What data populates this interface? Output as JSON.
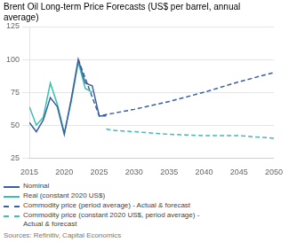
{
  "chart_data": {
    "type": "line",
    "title": "Brent Oil Long-term Price Forecasts (US$ per barrel, annual\naverage)",
    "source": "Sources: Refinitiv, Capital Economics",
    "xlim": [
      2015,
      2050
    ],
    "xticks": [
      2015,
      2020,
      2025,
      2030,
      2035,
      2040,
      2045,
      2050
    ],
    "ylim": [
      25,
      125
    ],
    "yticks": [
      25,
      50,
      75,
      100,
      125
    ],
    "grid": "y",
    "legend": "bottom",
    "series": [
      {
        "name": "Nominal",
        "color": "#3a5fa0",
        "line_style": "solid",
        "x": [
          2015,
          2016,
          2017,
          2018,
          2019,
          2020,
          2021,
          2022,
          2023,
          2024,
          2025,
          2026
        ],
        "values": [
          52,
          45,
          54,
          71,
          64,
          43,
          70,
          100,
          82,
          80,
          57,
          57
        ]
      },
      {
        "name": "Real (constant 2020 US$)",
        "color": "#3abfb0",
        "line_style": "solid",
        "x": [
          2015,
          2016,
          2017,
          2018,
          2019,
          2020,
          2021,
          2022,
          2023,
          2024
        ],
        "values": [
          64,
          50,
          56,
          82,
          66,
          44,
          68,
          98,
          78,
          75
        ]
      },
      {
        "name": "Commodity price (period average) - Actual & forecast",
        "color": "#3a5fa0",
        "line_style": "dashed",
        "x": [
          2022,
          2025,
          2030,
          2035,
          2040,
          2045,
          2050
        ],
        "values": [
          100,
          57,
          62,
          68,
          75,
          83,
          90
        ]
      },
      {
        "name": "Commodity price (constant 2020 US$, period average) -\nActual & forecast",
        "color": "#3abfb0",
        "line_style": "dashed",
        "x": [
          2026,
          2027,
          2030,
          2035,
          2040,
          2045,
          2050
        ],
        "values": [
          47,
          46,
          45,
          43,
          42,
          42,
          40
        ]
      }
    ]
  }
}
